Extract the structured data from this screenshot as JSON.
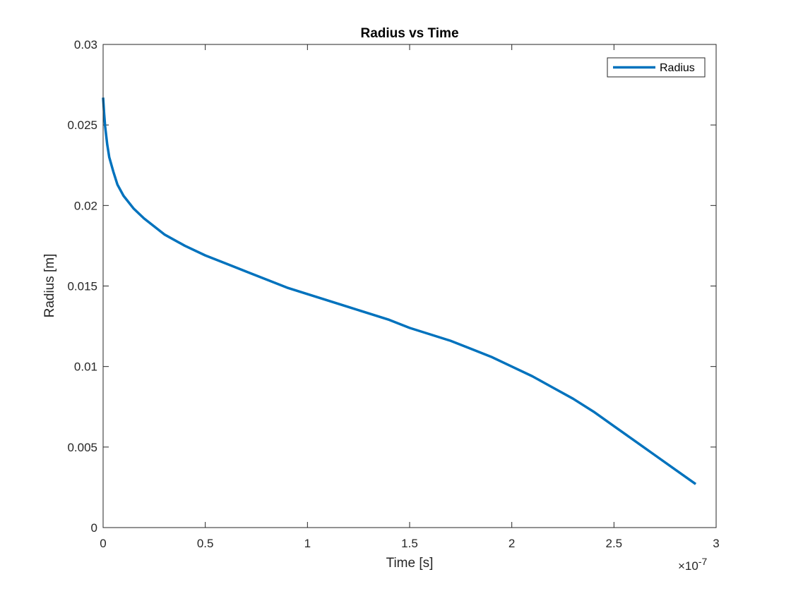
{
  "chart_data": {
    "type": "line",
    "title": "Radius vs Time",
    "xlabel": "Time [s]",
    "ylabel": "Radius [m]",
    "x_exponent_base": "×10",
    "x_exponent_power": "-7",
    "xlim": [
      0,
      3e-07
    ],
    "ylim": [
      0,
      0.03
    ],
    "xticks": [
      0,
      5e-08,
      1e-07,
      1.5e-07,
      2e-07,
      2.5e-07,
      3e-07
    ],
    "xtick_labels": [
      "0",
      "0.5",
      "1",
      "1.5",
      "2",
      "2.5",
      "3"
    ],
    "yticks": [
      0,
      0.005,
      0.01,
      0.015,
      0.02,
      0.025,
      0.03
    ],
    "ytick_labels": [
      "0",
      "0.005",
      "0.01",
      "0.015",
      "0.02",
      "0.025",
      "0.03"
    ],
    "grid": false,
    "legend_position": "top-right",
    "series": [
      {
        "name": "Radius",
        "color": "#0072BD",
        "x": [
          0,
          2.5e-10,
          5e-10,
          1e-09,
          2e-09,
          3e-09,
          5e-09,
          7e-09,
          1e-08,
          1.5e-08,
          2e-08,
          2.5e-08,
          3e-08,
          4e-08,
          5e-08,
          6e-08,
          7e-08,
          8e-08,
          9e-08,
          1e-07,
          1.1e-07,
          1.2e-07,
          1.3e-07,
          1.4e-07,
          1.5e-07,
          1.6e-07,
          1.7e-07,
          1.8e-07,
          1.9e-07,
          2e-07,
          2.1e-07,
          2.2e-07,
          2.3e-07,
          2.4e-07,
          2.5e-07,
          2.6e-07,
          2.7e-07,
          2.8e-07,
          2.9e-07
        ],
        "y": [
          0.0267,
          0.0262,
          0.0257,
          0.0249,
          0.0238,
          0.023,
          0.0221,
          0.0213,
          0.0206,
          0.0198,
          0.0192,
          0.0187,
          0.0182,
          0.0175,
          0.0169,
          0.0164,
          0.0159,
          0.0154,
          0.0149,
          0.0145,
          0.0141,
          0.0137,
          0.0133,
          0.0129,
          0.0124,
          0.012,
          0.0116,
          0.0111,
          0.0106,
          0.01,
          0.0094,
          0.0087,
          0.008,
          0.0072,
          0.0063,
          0.0054,
          0.0045,
          0.0036,
          0.0027
        ]
      }
    ]
  }
}
